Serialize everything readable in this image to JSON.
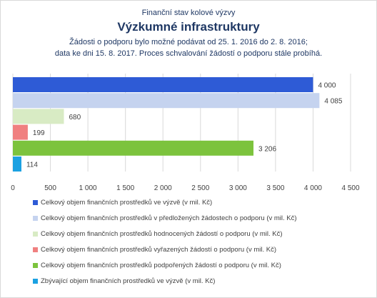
{
  "header": {
    "kicker": "Finanční stav kolové výzvy",
    "title": "Výzkumné infrastruktury",
    "note_line1": "Žádosti o podporu bylo možné  podávat od 25. 1. 2016 do 2. 8. 2016;",
    "note_line2": "data ke dni 15. 8. 2017. Proces schvalování žádostí o podporu stále probíhá."
  },
  "chart_data": {
    "type": "bar",
    "orientation": "horizontal",
    "xlim": [
      0,
      4500
    ],
    "x_ticks": [
      "0",
      "500",
      "1 000",
      "1 500",
      "2 000",
      "2 500",
      "3 000",
      "3 500",
      "4 000",
      "4 500"
    ],
    "grid": true,
    "legend_position": "bottom",
    "series": [
      {
        "name": "Celkový objem finančních prostředků ve výzvě (v mil. Kč)",
        "value": 4000,
        "label": "4 000",
        "color": "#2e5bd6"
      },
      {
        "name": "Celkový objem finančních prostředků v předložených žádostech o podporu (v mil. Kč)",
        "value": 4085,
        "label": "4 085",
        "color": "#c5d3ef"
      },
      {
        "name": "Celkový objem finančních prostředků hodnocených žádostí o podporu (v mil. Kč)",
        "value": 680,
        "label": "680",
        "color": "#d8ebc4"
      },
      {
        "name": "Celkový objem finančních prostředků vyřazených žádostí o podporu (v mil. Kč)",
        "value": 199,
        "label": "199",
        "color": "#f08080"
      },
      {
        "name": "Celkový objem finančních prostředků podpořených žádostí o podporu (v mil. Kč)",
        "value": 3206,
        "label": "3 206",
        "color": "#7cc33d"
      },
      {
        "name": "Zbývající objem finančních prostředků ve výzvě (v mil. Kč)",
        "value": 114,
        "label": "114",
        "color": "#1ba1e2"
      }
    ]
  }
}
